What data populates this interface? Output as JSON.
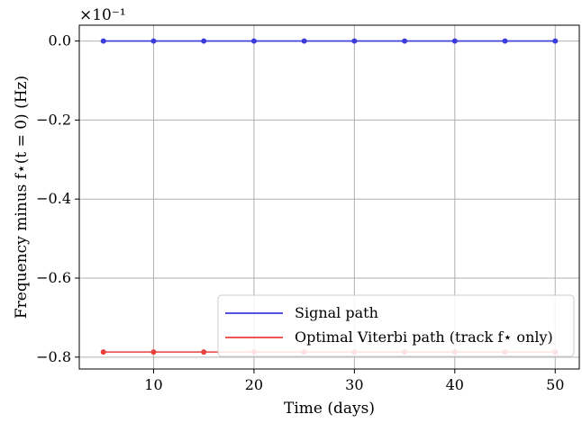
{
  "chart_data": {
    "type": "line",
    "xlabel": "Time (days)",
    "ylabel": "Frequency minus f⋆(t = 0) (Hz)",
    "offset_label": "×10⁻¹",
    "xlim": [
      2.6,
      52.4
    ],
    "ylim": [
      -0.83,
      0.04
    ],
    "xticks": [
      10,
      20,
      30,
      40,
      50
    ],
    "xtick_labels": [
      "10",
      "20",
      "30",
      "40",
      "50"
    ],
    "yticks": [
      0.0,
      -0.2,
      -0.4,
      -0.6,
      -0.8
    ],
    "ytick_labels": [
      "0.0",
      "−0.2",
      "−0.4",
      "−0.6",
      "−0.8"
    ],
    "grid": true,
    "legend_position": "lower-right",
    "x": [
      5,
      10,
      15,
      20,
      25,
      30,
      35,
      40,
      45,
      50
    ],
    "series": [
      {
        "name": "Signal path",
        "color": "#3b3bdb",
        "values": [
          0,
          0,
          0,
          0,
          0,
          0,
          0,
          0,
          0,
          0
        ]
      },
      {
        "name": "Optimal Viterbi path (track f⋆ only)",
        "color": "#e8413d",
        "values": [
          -0.787,
          -0.787,
          -0.787,
          -0.787,
          -0.787,
          -0.787,
          -0.787,
          -0.787,
          -0.787,
          -0.787
        ]
      }
    ]
  }
}
